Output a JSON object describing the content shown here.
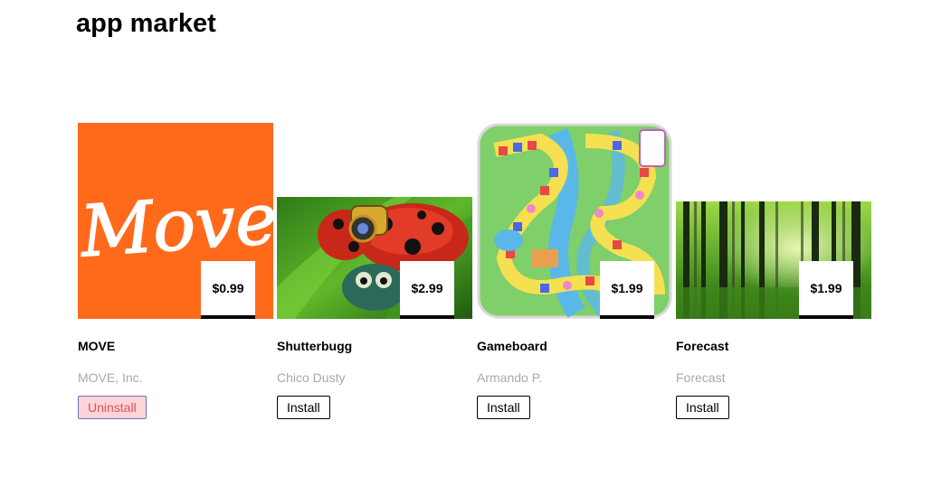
{
  "header": {
    "title": "app market"
  },
  "apps": [
    {
      "name": "MOVE",
      "developer": "MOVE, Inc.",
      "price": "$0.99",
      "action": "Uninstall",
      "image": {
        "type": "logo",
        "colors": {
          "background": "#ff6a1a",
          "text": "#ffffff"
        },
        "logo_text": "Move"
      }
    },
    {
      "name": "Shutterbugg",
      "developer": "Chico Dusty",
      "price": "$2.99",
      "action": "Install",
      "image": {
        "type": "illustration",
        "subject": "ladybug-with-camera"
      }
    },
    {
      "name": "Gameboard",
      "developer": "Armando P.",
      "price": "$1.99",
      "action": "Install",
      "image": {
        "type": "illustration",
        "subject": "board-game-map"
      }
    },
    {
      "name": "Forecast",
      "developer": "Forecast",
      "price": "$1.99",
      "action": "Install",
      "image": {
        "type": "photo",
        "subject": "forest"
      }
    }
  ]
}
